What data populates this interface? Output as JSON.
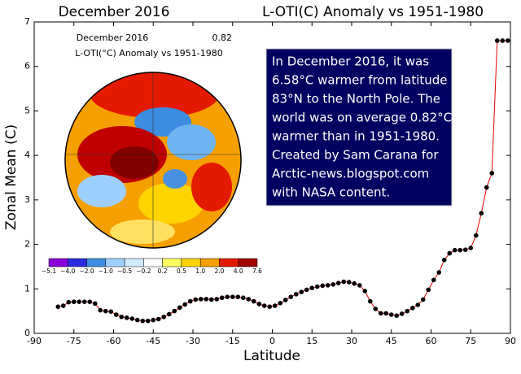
{
  "chart_data": {
    "type": "line",
    "title_left": "December 2016",
    "title_right": "L-OTI(C) Anomaly vs 1951-1980",
    "x_label": "Latitude",
    "y_label": "Zonal Mean (C)",
    "xlim": [
      -90,
      90
    ],
    "xticks": [
      -90,
      -75,
      -60,
      -45,
      -30,
      -15,
      0,
      15,
      30,
      45,
      60,
      75,
      90
    ],
    "ylim": [
      0,
      7
    ],
    "yticks": [
      0,
      1,
      2,
      3,
      4,
      5,
      6,
      7
    ],
    "series": [
      {
        "line_color": "#e00000",
        "marker_color": "#000000",
        "x": [
          -81,
          -79,
          -77,
          -75,
          -73,
          -71,
          -69,
          -67,
          -65,
          -63,
          -61,
          -59,
          -57,
          -55,
          -53,
          -51,
          -49,
          -47,
          -45,
          -43,
          -41,
          -39,
          -37,
          -35,
          -33,
          -31,
          -29,
          -27,
          -25,
          -23,
          -21,
          -19,
          -17,
          -15,
          -13,
          -11,
          -9,
          -7,
          -5,
          -3,
          -1,
          1,
          3,
          5,
          7,
          9,
          11,
          13,
          15,
          17,
          19,
          21,
          23,
          25,
          27,
          29,
          31,
          33,
          35,
          37,
          39,
          41,
          43,
          45,
          47,
          49,
          51,
          53,
          55,
          57,
          59,
          61,
          63,
          65,
          67,
          69,
          71,
          73,
          75,
          77,
          79,
          81,
          83,
          85,
          87,
          89
        ],
        "values": [
          0.6,
          0.62,
          0.7,
          0.71,
          0.71,
          0.71,
          0.71,
          0.67,
          0.52,
          0.5,
          0.49,
          0.42,
          0.37,
          0.35,
          0.33,
          0.3,
          0.28,
          0.28,
          0.3,
          0.32,
          0.37,
          0.43,
          0.5,
          0.58,
          0.65,
          0.72,
          0.76,
          0.77,
          0.77,
          0.76,
          0.77,
          0.8,
          0.82,
          0.82,
          0.82,
          0.8,
          0.77,
          0.72,
          0.66,
          0.62,
          0.6,
          0.62,
          0.68,
          0.75,
          0.82,
          0.88,
          0.93,
          0.98,
          1.02,
          1.05,
          1.07,
          1.08,
          1.1,
          1.13,
          1.16,
          1.15,
          1.12,
          1.08,
          0.95,
          0.72,
          0.55,
          0.45,
          0.45,
          0.42,
          0.4,
          0.44,
          0.5,
          0.57,
          0.64,
          0.76,
          0.98,
          1.2,
          1.37,
          1.65,
          1.8,
          1.87,
          1.87,
          1.88,
          1.92,
          2.2,
          2.7,
          3.28,
          3.6,
          6.58,
          6.58,
          6.58
        ]
      }
    ],
    "annotation": [
      "In December 2016, it was",
      "6.58°C warmer from latitude",
      "83°N to the North Pole.  The",
      "world was on average 0.82°C",
      "warmer than in 1951-1980.",
      "Created by Sam Carana for",
      "Arctic-news.blogspot.com",
      "with NASA content."
    ]
  },
  "inset": {
    "title": "December 2016",
    "mean": "0.82",
    "subtitle": "L-OTI(°C) Anomaly vs 1951-1980",
    "colorbar_labels": [
      "−5.1",
      "−4.0",
      "−2.0",
      "−1.0",
      "−0.5",
      "−0.2",
      "0.2",
      "0.5",
      "1.0",
      "2.0",
      "4.0",
      "7.6"
    ]
  }
}
